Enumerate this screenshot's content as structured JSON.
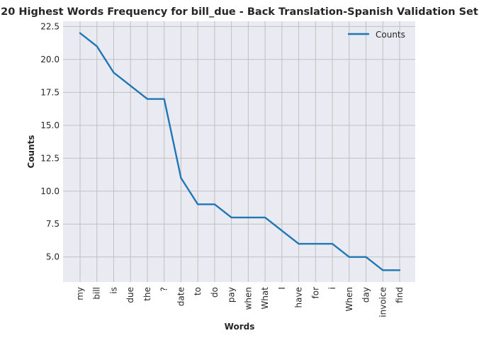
{
  "chart_data": {
    "type": "line",
    "title": "20 Highest Words Frequency for bill_due - Back Translation-Spanish Validation Set",
    "xlabel": "Words",
    "ylabel": "Counts",
    "categories": [
      "my",
      "bill",
      "is",
      "due",
      "the",
      "?",
      "date",
      "to",
      "do",
      "pay",
      "when",
      "What",
      "I",
      "have",
      "for",
      "i",
      "When",
      "day",
      "invoice",
      "find"
    ],
    "series": [
      {
        "name": "Counts",
        "color": "#1f77b4",
        "values": [
          22,
          21,
          19,
          18,
          17,
          17,
          11,
          9,
          9,
          8,
          8,
          8,
          7,
          6,
          6,
          6,
          5,
          5,
          4,
          4
        ]
      }
    ],
    "ylim": [
      3.1,
      22.9
    ],
    "yticks": [
      5.0,
      7.5,
      10.0,
      12.5,
      15.0,
      17.5,
      20.0,
      22.5
    ],
    "ytick_labels": [
      "5.0",
      "7.5",
      "10.0",
      "12.5",
      "15.0",
      "17.5",
      "20.0",
      "22.5"
    ],
    "grid": true,
    "legend_position": "top-right",
    "colors": {
      "plot_background": "#eaeaf2",
      "grid": "#c0c0c0",
      "text": "#262626"
    }
  }
}
